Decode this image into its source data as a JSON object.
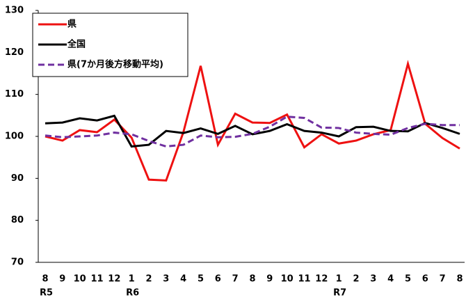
{
  "chart_data": {
    "type": "line",
    "categories": [
      "8",
      "9",
      "10",
      "11",
      "12",
      "1",
      "2",
      "3",
      "4",
      "5",
      "6",
      "7",
      "8",
      "9",
      "10",
      "11",
      "12",
      "1",
      "2",
      "3",
      "4",
      "5",
      "6",
      "7",
      "8"
    ],
    "year_labels": [
      "R5",
      null,
      null,
      null,
      null,
      "R6",
      null,
      null,
      null,
      null,
      null,
      null,
      null,
      null,
      null,
      null,
      null,
      "R7",
      null,
      null,
      null,
      null,
      null,
      null,
      null
    ],
    "series": [
      {
        "name": "県",
        "color": "#ee1111",
        "dashed": false,
        "values": [
          100,
          99,
          101.5,
          101,
          104,
          99.7,
          89.7,
          89.5,
          101,
          116.8,
          98,
          105.4,
          103.3,
          103.2,
          105.2,
          97.4,
          100.5,
          98.3,
          99,
          100.5,
          101.5,
          117.3,
          103,
          99.6,
          97.1
        ]
      },
      {
        "name": "全国",
        "color": "#000000",
        "dashed": false,
        "values": [
          103.1,
          103.3,
          104.3,
          103.8,
          104.9,
          97.6,
          98,
          101.3,
          100.8,
          101.9,
          100.6,
          102.5,
          100.5,
          101.3,
          102.9,
          101.3,
          100.9,
          100,
          102.2,
          102.3,
          101.3,
          101.2,
          103.2,
          102,
          100.6
        ]
      },
      {
        "name": "県(7か月後方移動平均)",
        "color": "#7030a0",
        "dashed": true,
        "values": [
          100.2,
          99.8,
          100,
          100.2,
          100.9,
          100.5,
          98.9,
          97.6,
          98,
          100.2,
          99.8,
          99.9,
          100.6,
          102.3,
          104.7,
          104.4,
          102.1,
          102,
          100.9,
          100.6,
          100.4,
          102,
          103,
          102.7,
          102.7
        ]
      }
    ],
    "ylim": [
      70,
      130
    ],
    "yticks": [
      70,
      80,
      90,
      100,
      110,
      120,
      130
    ],
    "legend": "top-left"
  }
}
